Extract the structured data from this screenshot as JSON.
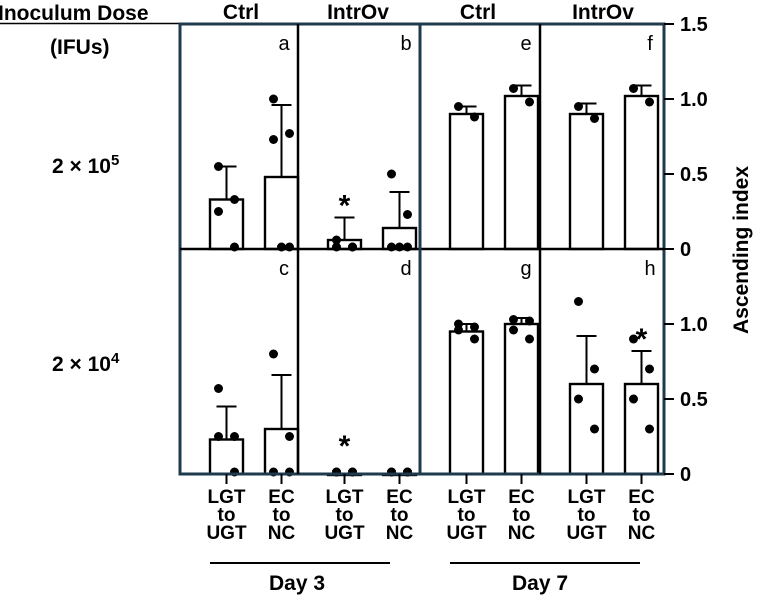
{
  "chart_data": {
    "type": "bar",
    "row_header_title": [
      "Inoculum Dose",
      "(IFUs)"
    ],
    "column_groups": [
      "Ctrl",
      "IntrOv",
      "Ctrl",
      "IntrOv"
    ],
    "row_labels": [
      {
        "base": "2 × 10",
        "exp": "5"
      },
      {
        "base": "2 × 10",
        "exp": "4"
      }
    ],
    "ylabel": "Ascending index",
    "ylim": [
      0,
      1.5
    ],
    "yticks_top": [
      "1.5",
      "1.0",
      "0.5",
      "0"
    ],
    "yticks_bottom": [
      "1.0",
      "0.5",
      "0"
    ],
    "categories": [
      [
        "LGT",
        "to",
        "UGT"
      ],
      [
        "EC",
        "to",
        "NC"
      ]
    ],
    "days": [
      "Day 3",
      "Day 7"
    ],
    "panels": [
      {
        "letter": "a",
        "bars": [
          {
            "mean": 0.33,
            "err": 0.22,
            "points": [
              0.55,
              0.33,
              0.25,
              0.0
            ],
            "star": false
          },
          {
            "mean": 0.48,
            "err": 0.48,
            "points": [
              1.0,
              0.77,
              0.73,
              0.0,
              0.0
            ],
            "star": false
          }
        ]
      },
      {
        "letter": "b",
        "bars": [
          {
            "mean": 0.06,
            "err": 0.15,
            "points": [
              0.06,
              0.0,
              0.0,
              0.0
            ],
            "star": true
          },
          {
            "mean": 0.14,
            "err": 0.24,
            "points": [
              0.5,
              0.23,
              0.0,
              0.0,
              0.0
            ],
            "star": false
          }
        ]
      },
      {
        "letter": "e",
        "bars": [
          {
            "mean": 0.9,
            "err": 0.05,
            "points": [
              0.95,
              0.88
            ],
            "star": false
          },
          {
            "mean": 1.02,
            "err": 0.07,
            "points": [
              1.07,
              0.98
            ],
            "star": false
          }
        ]
      },
      {
        "letter": "f",
        "bars": [
          {
            "mean": 0.9,
            "err": 0.07,
            "points": [
              0.95,
              0.87
            ],
            "star": false
          },
          {
            "mean": 1.02,
            "err": 0.07,
            "points": [
              1.07,
              0.98
            ],
            "star": false
          }
        ]
      },
      {
        "letter": "c",
        "bars": [
          {
            "mean": 0.23,
            "err": 0.22,
            "points": [
              0.57,
              0.25,
              0.25,
              0.0
            ],
            "star": false
          },
          {
            "mean": 0.3,
            "err": 0.36,
            "points": [
              0.8,
              0.25,
              0.0,
              0.0
            ],
            "star": false
          }
        ]
      },
      {
        "letter": "d",
        "bars": [
          {
            "mean": 0.0,
            "err": 0.0,
            "points": [
              0.0,
              0.0,
              0.0,
              0.0
            ],
            "star": true
          },
          {
            "mean": 0.0,
            "err": 0.0,
            "points": [
              0.0,
              0.0,
              0.0,
              0.0
            ],
            "star": false
          }
        ]
      },
      {
        "letter": "g",
        "bars": [
          {
            "mean": 0.95,
            "err": 0.05,
            "points": [
              1.0,
              0.98,
              0.96,
              0.9
            ],
            "star": false
          },
          {
            "mean": 1.0,
            "err": 0.04,
            "points": [
              1.03,
              1.02,
              0.96,
              0.9
            ],
            "star": false
          }
        ]
      },
      {
        "letter": "h",
        "bars": [
          {
            "mean": 0.6,
            "err": 0.32,
            "points": [
              1.15,
              0.7,
              0.5,
              0.3
            ],
            "star": false
          },
          {
            "mean": 0.6,
            "err": 0.22,
            "points": [
              0.9,
              0.7,
              0.5,
              0.3
            ],
            "star": true
          }
        ]
      }
    ],
    "star_symbol": "*",
    "grid": false,
    "legend": "none"
  }
}
